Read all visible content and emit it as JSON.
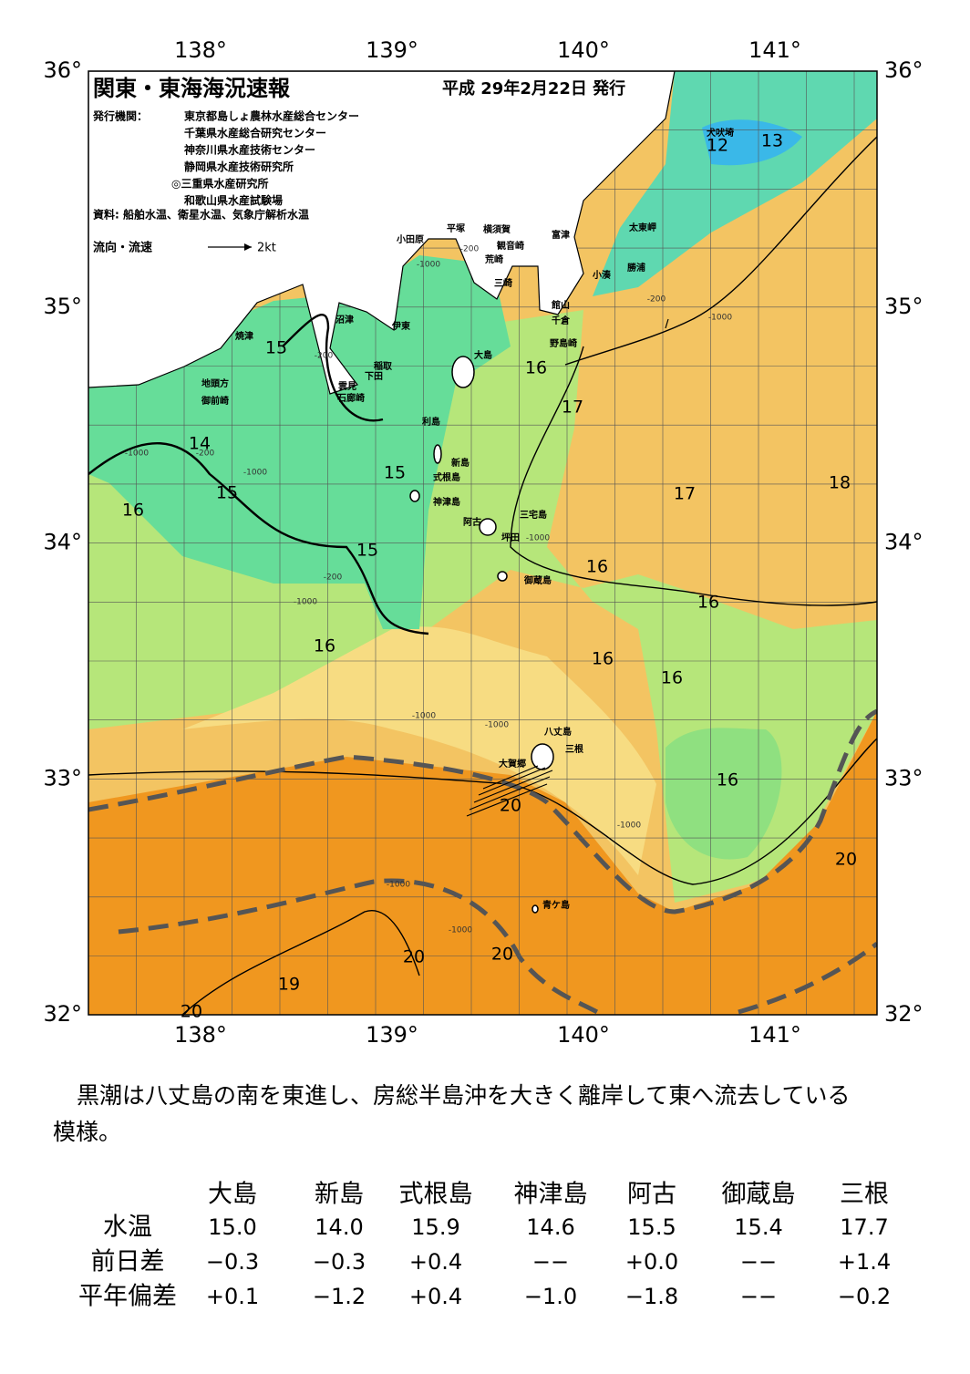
{
  "header": {
    "title": "関東・東海海況速報",
    "date": "平成 29年2月22日 発行",
    "issuer_label": "発行機関：",
    "issuers": [
      "東京都島しょ農林水産総合センター",
      "千葉県水産総合研究センター",
      "神奈川県水産技術センター",
      "静岡県水産技術研究所",
      "◎三重県水産研究所",
      "和歌山県水産試験場"
    ],
    "source": "資料: 船舶水温、衛星水温、気象庁解析水温",
    "current_label": "流向・流速",
    "current_scale": "2kt"
  },
  "map": {
    "lon_labels": [
      "138°",
      "139°",
      "140°",
      "141°"
    ],
    "lat_labels": [
      "36°",
      "35°",
      "34°",
      "33°",
      "32°"
    ],
    "isotherm_labels": [
      "12",
      "13",
      "15",
      "16",
      "17",
      "14",
      "15",
      "15",
      "16",
      "17",
      "18",
      "15",
      "16",
      "16",
      "16",
      "16",
      "16",
      "16",
      "20",
      "20",
      "20",
      "20",
      "19",
      "20"
    ],
    "place_names": [
      "大島",
      "利島",
      "新島",
      "式根島",
      "神津島",
      "三宅島",
      "阿古",
      "坪田",
      "御蔵島",
      "八丈島",
      "三根",
      "大賀郷",
      "青ケ島",
      "小田原",
      "平塚",
      "横須賀",
      "観音崎",
      "荒崎",
      "三崎",
      "富津",
      "館山",
      "千倉",
      "野島崎",
      "小湊",
      "勝浦",
      "太東岬",
      "犬吠埼",
      "沼津",
      "伊東",
      "稲取",
      "下田",
      "雲見",
      "石廊崎",
      "焼津",
      "地頭方",
      "御前崎"
    ],
    "depth_labels": [
      "-200",
      "-1000",
      "-200",
      "-200",
      "-1000",
      "-1000",
      "-1000",
      "-200",
      "-200",
      "-1000",
      "-1000",
      "-1000",
      "-1000",
      "-1000",
      "-1000",
      "-1000"
    ]
  },
  "summary_lines": [
    "黒潮は八丈島の南を東進し、房総半島沖を大きく離岸して東へ流去している",
    "模様。"
  ],
  "table": {
    "columns": [
      "大島",
      "新島",
      "式根島",
      "神津島",
      "阿古",
      "御蔵島",
      "三根"
    ],
    "rows": [
      {
        "label": "水温",
        "values": [
          "15.0",
          "14.0",
          "15.9",
          "14.6",
          "15.5",
          "15.4",
          "17.7"
        ]
      },
      {
        "label": "前日差",
        "values": [
          "−0.3",
          "−0.3",
          "+0.4",
          "−−",
          "+0.0",
          "−−",
          "+1.4"
        ]
      },
      {
        "label": "平年偏差",
        "values": [
          "+0.1",
          "−1.2",
          "+0.4",
          "−1.0",
          "−1.8",
          "−−",
          "−0.2"
        ]
      }
    ]
  }
}
